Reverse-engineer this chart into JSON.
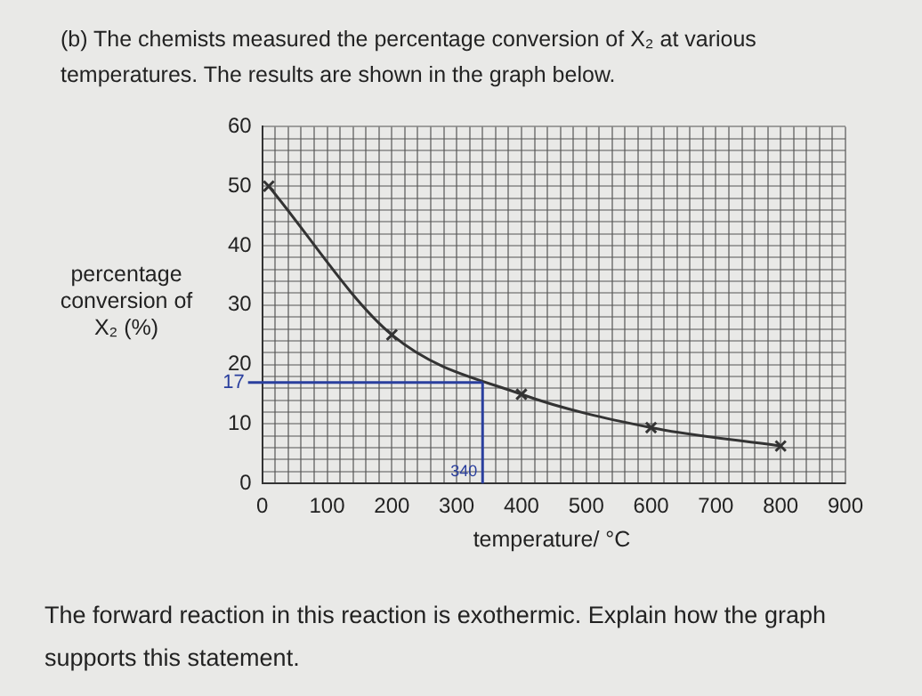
{
  "chart_data": {
    "type": "line",
    "title": "(b) The chemists measured the percentage conversion of X₂ at various temperatures. The results are shown in the graph below.",
    "xlabel": "temperature/ °C",
    "ylabel": "percentage conversion of X₂ (%)",
    "x": [
      10,
      200,
      400,
      600,
      800
    ],
    "series": [
      {
        "color": "#333333",
        "values": [
          50,
          25,
          15,
          9.4,
          6.3
        ]
      }
    ],
    "marker": "cross",
    "line_style": "solid",
    "grid": true,
    "legend": false,
    "xlim": [
      0,
      900
    ],
    "ylim": [
      0,
      60
    ],
    "xticks": [
      0,
      {
        "value": 20,
        "label": null
      },
      {
        "value": 40,
        "label": null
      },
      {
        "value": 60,
        "label": null
      },
      {
        "value": 80,
        "label": null
      },
      100,
      {
        "value": 120,
        "label": null
      },
      {
        "value": 140,
        "label": null
      },
      {
        "value": 160,
        "label": null
      },
      {
        "value": 180,
        "label": null
      },
      200,
      {
        "value": 220,
        "label": null
      },
      {
        "value": 240,
        "label": null
      },
      {
        "value": 260,
        "label": null
      },
      {
        "value": 280,
        "label": null
      },
      300,
      {
        "value": 320,
        "label": null
      },
      {
        "value": 340,
        "label": null
      },
      {
        "value": 360,
        "label": null
      },
      {
        "value": 380,
        "label": null
      },
      400,
      {
        "value": 420,
        "label": null
      },
      {
        "value": 440,
        "label": null
      },
      {
        "value": 460,
        "label": null
      },
      {
        "value": 480,
        "label": null
      },
      500,
      {
        "value": 520,
        "label": null
      },
      {
        "value": 540,
        "label": null
      },
      {
        "value": 560,
        "label": null
      },
      {
        "value": 580,
        "label": null
      },
      600,
      {
        "value": 620,
        "label": null
      },
      {
        "value": 640,
        "label": null
      },
      {
        "value": 660,
        "label": null
      },
      {
        "value": 680,
        "label": null
      },
      700,
      {
        "value": 720,
        "label": null
      },
      {
        "value": 740,
        "label": null
      },
      {
        "value": 760,
        "label": null
      },
      {
        "value": 780,
        "label": null
      },
      800,
      {
        "value": 820,
        "label": null
      },
      {
        "value": 840,
        "label": null
      },
      {
        "value": 860,
        "label": null
      },
      {
        "value": 880,
        "label": null
      },
      900
    ],
    "yticks": [
      0,
      {
        "value": 2,
        "label": null
      },
      {
        "value": 4,
        "label": null
      },
      {
        "value": 6,
        "label": null
      },
      {
        "value": 8,
        "label": null
      },
      10,
      {
        "value": 12,
        "label": null
      },
      {
        "value": 14,
        "label": null
      },
      {
        "value": 16,
        "label": null
      },
      {
        "value": 18,
        "label": null
      },
      20,
      {
        "value": 22,
        "label": null
      },
      {
        "value": 24,
        "label": null
      },
      {
        "value": 26,
        "label": null
      },
      {
        "value": 28,
        "label": null
      },
      30,
      {
        "value": 32,
        "label": null
      },
      {
        "value": 34,
        "label": null
      },
      {
        "value": 36,
        "label": null
      },
      {
        "value": 38,
        "label": null
      },
      40,
      {
        "value": 42,
        "label": null
      },
      {
        "value": 44,
        "label": null
      },
      {
        "value": 46,
        "label": null
      },
      {
        "value": 48,
        "label": null
      },
      50,
      {
        "value": 52,
        "label": null
      },
      {
        "value": 54,
        "label": null
      },
      {
        "value": 56,
        "label": null
      },
      {
        "value": 58,
        "label": null
      },
      60
    ],
    "ref_lines": [
      {
        "axis": "y",
        "value": 17,
        "label": "17",
        "color": "#2a3f9e"
      },
      {
        "axis": "x",
        "value": 340,
        "label": "340",
        "color": "#2a3f9e"
      }
    ],
    "annotations": [
      "The forward reaction in this reaction is exothermic. Explain how the graph supports this statement."
    ]
  }
}
